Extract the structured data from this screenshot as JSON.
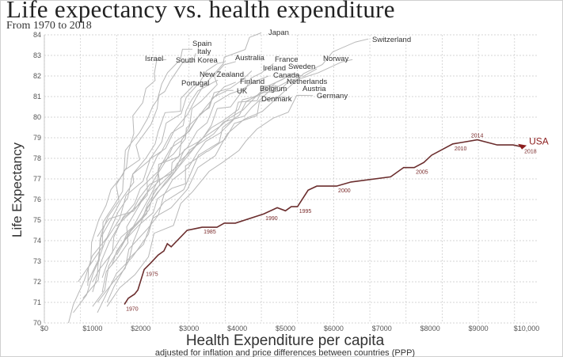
{
  "chart_data": {
    "type": "line",
    "title": "Life expectancy vs. health expenditure",
    "subtitle": "From 1970 to 2018",
    "xlabel": "Health Expenditure per capita",
    "xlabel_note": "adjusted for inflation and price differences between countries (PPP)",
    "ylabel": "Life Expectancy",
    "xlim": [
      0,
      10000
    ],
    "ylim": [
      70,
      84
    ],
    "grid": true,
    "x_ticks": [
      0,
      1000,
      2000,
      3000,
      4000,
      5000,
      6000,
      7000,
      8000,
      9000,
      10000
    ],
    "x_tick_labels": [
      "$0",
      "$1000",
      "$2000",
      "$3000",
      "$4000",
      "$5000",
      "$6000",
      "$7000",
      "$8000",
      "$9000",
      "$10,000"
    ],
    "y_ticks": [
      70,
      71,
      72,
      73,
      74,
      75,
      76,
      77,
      78,
      79,
      80,
      81,
      82,
      83,
      84
    ],
    "y_tick_labels": [
      "70",
      "71",
      "72",
      "73",
      "74",
      "75",
      "76",
      "77",
      "78",
      "79",
      "80",
      "81",
      "82",
      "83",
      "84"
    ],
    "highlight": {
      "name": "USA",
      "color": "#6b2e2e",
      "arrow_color": "#8b1c1c",
      "points": [
        [
          1660,
          70.9
        ],
        [
          1740,
          71.2
        ],
        [
          1870,
          71.4
        ],
        [
          1940,
          71.6
        ],
        [
          2070,
          72.6
        ],
        [
          2200,
          72.9
        ],
        [
          2360,
          73.3
        ],
        [
          2480,
          73.5
        ],
        [
          2550,
          73.85
        ],
        [
          2630,
          73.7
        ],
        [
          2960,
          74.5
        ],
        [
          3270,
          74.65
        ],
        [
          3580,
          74.65
        ],
        [
          3730,
          74.85
        ],
        [
          3960,
          74.85
        ],
        [
          4550,
          75.3
        ],
        [
          4830,
          75.6
        ],
        [
          5000,
          75.45
        ],
        [
          5120,
          75.65
        ],
        [
          5250,
          75.65
        ],
        [
          5470,
          76.45
        ],
        [
          5650,
          76.65
        ],
        [
          6060,
          76.65
        ],
        [
          6360,
          76.85
        ],
        [
          7180,
          77.1
        ],
        [
          7450,
          77.55
        ],
        [
          7670,
          77.55
        ],
        [
          7870,
          77.8
        ],
        [
          8030,
          78.15
        ],
        [
          8470,
          78.7
        ],
        [
          8650,
          78.77
        ],
        [
          8980,
          78.9
        ],
        [
          9390,
          78.65
        ],
        [
          9720,
          78.65
        ],
        [
          9920,
          78.55
        ]
      ],
      "year_labels": [
        {
          "year": "1970",
          "x": 1660,
          "y": 70.9
        },
        {
          "year": "1975",
          "x": 2070,
          "y": 72.6
        },
        {
          "year": "1985",
          "x": 3270,
          "y": 74.65
        },
        {
          "year": "1990",
          "x": 4550,
          "y": 75.3
        },
        {
          "year": "1995",
          "x": 5250,
          "y": 75.65
        },
        {
          "year": "2000",
          "x": 6060,
          "y": 76.65
        },
        {
          "year": "2005",
          "x": 7670,
          "y": 77.55
        },
        {
          "year": "2010",
          "x": 8470,
          "y": 78.7
        },
        {
          "year": "2014",
          "x": 8980,
          "y": 78.9
        },
        {
          "year": "2018",
          "x": 9920,
          "y": 78.55
        }
      ]
    },
    "series_color": "#b8b8b8",
    "series": [
      {
        "name": "Japan",
        "start": [
          900,
          72.0
        ],
        "end": [
          4500,
          84.1
        ]
      },
      {
        "name": "Switzerland",
        "start": [
          1700,
          73.0
        ],
        "end": [
          6720,
          83.8
        ]
      },
      {
        "name": "Spain",
        "start": [
          700,
          72.0
        ],
        "end": [
          3070,
          83.3
        ]
      },
      {
        "name": "Italy",
        "start": [
          900,
          71.8
        ],
        "end": [
          3140,
          83.1
        ]
      },
      {
        "name": "Israel",
        "start": [
          1000,
          71.5
        ],
        "end": [
          2530,
          82.8
        ]
      },
      {
        "name": "South Korea",
        "start": [
          500,
          70.0
        ],
        "end": [
          3760,
          82.7
        ]
      },
      {
        "name": "Australia",
        "start": [
          1300,
          71.0
        ],
        "end": [
          3970,
          82.7
        ]
      },
      {
        "name": "France",
        "start": [
          1200,
          72.2
        ],
        "end": [
          4750,
          82.6
        ]
      },
      {
        "name": "Norway",
        "start": [
          1100,
          74.2
        ],
        "end": [
          6390,
          82.8
        ]
      },
      {
        "name": "Sweden",
        "start": [
          1500,
          74.7
        ],
        "end": [
          5650,
          82.35
        ]
      },
      {
        "name": "Ireland",
        "start": [
          800,
          71.2
        ],
        "end": [
          4300,
          82.25
        ]
      },
      {
        "name": "Canada",
        "start": [
          1400,
          72.8
        ],
        "end": [
          4650,
          82.0
        ]
      },
      {
        "name": "Netherlands",
        "start": [
          1600,
          73.7
        ],
        "end": [
          4990,
          81.9
        ]
      },
      {
        "name": "Austria",
        "start": [
          1100,
          70.5
        ],
        "end": [
          5050,
          81.7
        ]
      },
      {
        "name": "Belgium",
        "start": [
          1100,
          71.0
        ],
        "end": [
          4850,
          81.5
        ]
      },
      {
        "name": "New Zealand",
        "start": [
          1200,
          71.5
        ],
        "end": [
          3600,
          81.8
        ]
      },
      {
        "name": "Portugal",
        "start": [
          600,
          70.5
        ],
        "end": [
          3200,
          81.6
        ]
      },
      {
        "name": "Finland",
        "start": [
          1000,
          70.8
        ],
        "end": [
          3970,
          81.7
        ]
      },
      {
        "name": "UK",
        "start": [
          1000,
          72.0
        ],
        "end": [
          3920,
          81.3
        ]
      },
      {
        "name": "Denmark",
        "start": [
          1500,
          73.3
        ],
        "end": [
          4990,
          81.0
        ]
      },
      {
        "name": "Germany",
        "start": [
          1300,
          70.8
        ],
        "end": [
          5570,
          81.05
        ]
      }
    ]
  }
}
